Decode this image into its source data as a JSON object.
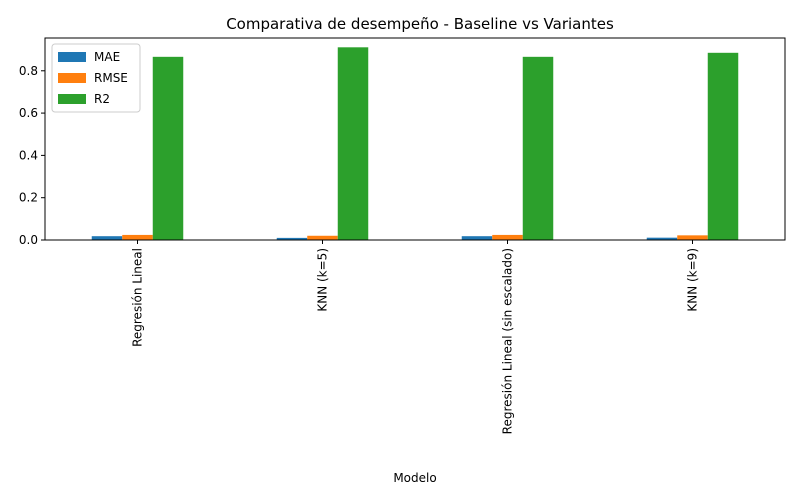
{
  "chart_data": {
    "type": "bar",
    "title": "Comparativa de desempeño - Baseline vs Variantes",
    "xlabel": "Modelo",
    "ylabel": "",
    "categories": [
      "Regresión Lineal",
      "KNN (k=5)",
      "Regresión Lineal (sin escalado)",
      "KNN (k=9)"
    ],
    "series": [
      {
        "name": "MAE",
        "color": "#1f77b4",
        "values": [
          0.018,
          0.01,
          0.018,
          0.011
        ]
      },
      {
        "name": "RMSE",
        "color": "#ff7f0e",
        "values": [
          0.024,
          0.02,
          0.024,
          0.022
        ]
      },
      {
        "name": "R2",
        "color": "#2ca02c",
        "values": [
          0.866,
          0.911,
          0.866,
          0.885
        ]
      }
    ],
    "ylim": [
      0,
      0.955
    ],
    "yticks": [
      0.0,
      0.2,
      0.4,
      0.6,
      0.8
    ],
    "ytick_labels": [
      "0.0",
      "0.2",
      "0.4",
      "0.6",
      "0.8"
    ],
    "x_tick_rotation": "vertical",
    "grid": false,
    "legend_position": "upper-left"
  }
}
